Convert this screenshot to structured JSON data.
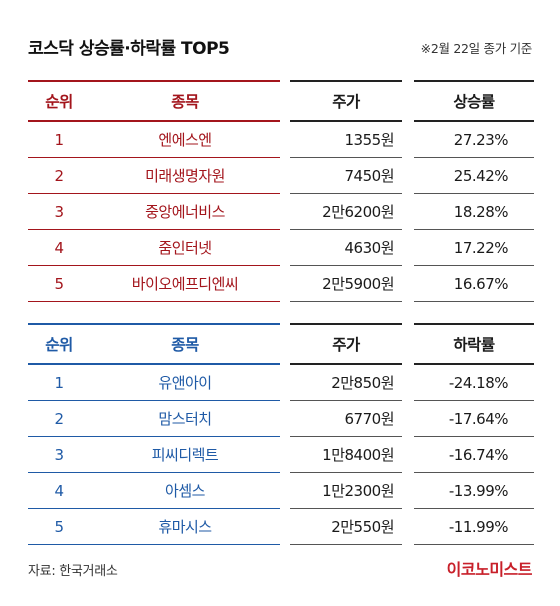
{
  "title": "코스닥 상승률·하락률 TOP5",
  "basis_note": "※2월 22일 종가 기준",
  "gainers": {
    "headers": {
      "rank": "순위",
      "name": "종목",
      "price": "주가",
      "rate": "상승률"
    },
    "rows": [
      {
        "rank": "1",
        "name": "엔에스엔",
        "price": "1355원",
        "rate": "27.23%"
      },
      {
        "rank": "2",
        "name": "미래생명자원",
        "price": "7450원",
        "rate": "25.42%"
      },
      {
        "rank": "3",
        "name": "중앙에너비스",
        "price": "2만6200원",
        "rate": "18.28%"
      },
      {
        "rank": "4",
        "name": "줌인터넷",
        "price": "4630원",
        "rate": "17.22%"
      },
      {
        "rank": "5",
        "name": "바이오에프디엔씨",
        "price": "2만5900원",
        "rate": "16.67%"
      }
    ]
  },
  "losers": {
    "headers": {
      "rank": "순위",
      "name": "종목",
      "price": "주가",
      "rate": "하락률"
    },
    "rows": [
      {
        "rank": "1",
        "name": "유앤아이",
        "price": "2만850원",
        "rate": "-24.18%"
      },
      {
        "rank": "2",
        "name": "맘스터치",
        "price": "6770원",
        "rate": "-17.64%"
      },
      {
        "rank": "3",
        "name": "피씨디렉트",
        "price": "1만8400원",
        "rate": "-16.74%"
      },
      {
        "rank": "4",
        "name": "아셈스",
        "price": "1만2300원",
        "rate": "-13.99%"
      },
      {
        "rank": "5",
        "name": "휴마시스",
        "price": "2만550원",
        "rate": "-11.99%"
      }
    ]
  },
  "source": "자료: 한국거래소",
  "brand": "이코노미스트",
  "colors": {
    "gainers_accent": "#a3151c",
    "losers_accent": "#1f5aa6",
    "brand": "#c8202a"
  }
}
